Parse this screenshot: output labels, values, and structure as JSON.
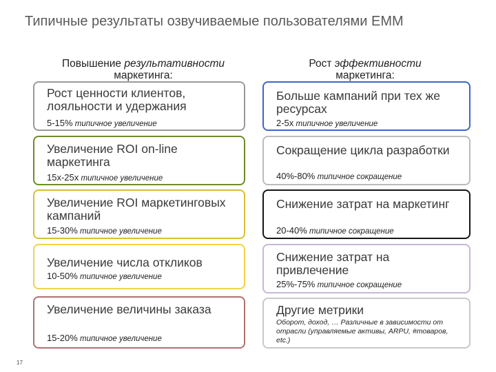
{
  "title": "Типичные результаты озвучиваемые пользователями EMM",
  "left_heading": {
    "prefix": "Повышение ",
    "emph": "результативности",
    "line2": "маркетинга:"
  },
  "right_heading": {
    "prefix": "Рост ",
    "emph": "эффективности",
    "line2": "маркетинга:"
  },
  "left_items": [
    {
      "main": "Рост ценности клиентов, лояльности и удержания",
      "num": "5-15%",
      "sub": " типичное увеличение",
      "color": "#999999"
    },
    {
      "main": "Увеличение ROI on-line маркетинга",
      "num": "15x-25x",
      "sub": " типичное увеличение",
      "color": "#6e8a2a"
    },
    {
      "main": "Увеличение ROI маркетинговых кампаний",
      "num": "15-30%",
      "sub": " типичное увеличение",
      "color": "#d6c030"
    },
    {
      "main": "Увеличение числа откликов",
      "num": "10-50%",
      "sub": " типичное увеличение",
      "color": "#f2d24a"
    },
    {
      "main": "Увеличение величины заказа",
      "num": "15-20%",
      "sub": " типичное увеличение",
      "color": "#b07070"
    }
  ],
  "right_items": [
    {
      "main": "Больше кампаний при тех же ресурсах",
      "num": "2-5x",
      "sub": " типичное увеличение",
      "color": "#3a66c8"
    },
    {
      "main": "Сокращение цикла разработки",
      "num": "40%-80%",
      "sub": " типичное сокращение",
      "color": "#bbbbbb"
    },
    {
      "main": "Снижение затрат на маркетинг",
      "num": "20-40%",
      "sub": " типичное сокращение",
      "color": "#151515"
    },
    {
      "main": "Снижение затрат на привлечение",
      "num": "25%-75%",
      "sub": " типичное сокращение",
      "color": "#c9b6d4"
    },
    {
      "main": "Другие метрики",
      "num": "",
      "sub": "Оборот, доход, … Различные в зависимости от отрасли (управляемые активы, ARPU, #товаров, etc.)",
      "color": "#c8c8c8"
    }
  ],
  "page_number": "17"
}
